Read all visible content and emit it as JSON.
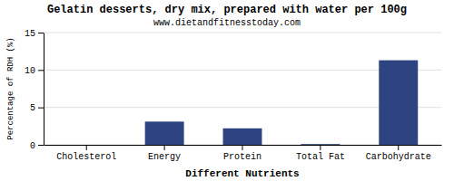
{
  "chart_data": {
    "type": "bar",
    "title": "Gelatin desserts, dry mix, prepared with water per 100g",
    "subtitle": "www.dietandfitnesstoday.com",
    "xlabel": "Different Nutrients",
    "ylabel": "Percentage of RDH (%)",
    "categories": [
      "Cholesterol",
      "Energy",
      "Protein",
      "Total Fat",
      "Carbohydrate"
    ],
    "values": [
      0,
      3.1,
      2.2,
      0.1,
      11.3
    ],
    "color": "#2e4480",
    "ylim": [
      0,
      15
    ],
    "yticks": [
      0,
      5,
      10,
      15
    ],
    "grid": true
  }
}
